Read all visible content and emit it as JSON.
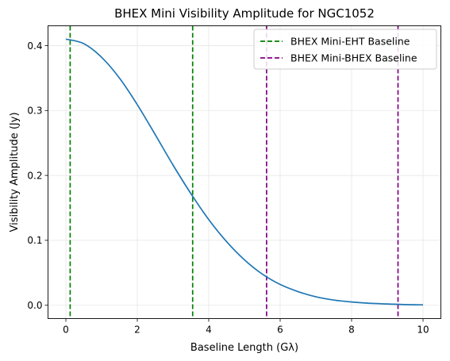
{
  "chart_data": {
    "type": "line",
    "title": "BHEX Mini Visibility Amplitude for NGC1052",
    "xlabel": "Baseline Length (Gλ)",
    "ylabel": "Visibility Amplitude (Jy)",
    "xlim": [
      -0.5,
      10.5
    ],
    "ylim": [
      -0.0205,
      0.4305
    ],
    "xticks": [
      0,
      2,
      4,
      6,
      8,
      10
    ],
    "yticks": [
      0.0,
      0.1,
      0.2,
      0.3,
      0.4
    ],
    "xtick_labels": [
      "0",
      "2",
      "4",
      "6",
      "8",
      "10"
    ],
    "ytick_labels": [
      "0.0",
      "0.1",
      "0.2",
      "0.3",
      "0.4"
    ],
    "grid": true,
    "legend_position": "top-right",
    "series": [
      {
        "color": "#1f77b4",
        "x": [
          0,
          0.5,
          1,
          1.5,
          2,
          2.5,
          3,
          3.5,
          4,
          4.5,
          5,
          5.5,
          6,
          6.5,
          7,
          7.5,
          8,
          8.5,
          9,
          9.5,
          10
        ],
        "y": [
          0.41,
          0.403,
          0.382,
          0.35,
          0.309,
          0.263,
          0.216,
          0.172,
          0.132,
          0.098,
          0.07,
          0.048,
          0.032,
          0.021,
          0.013,
          0.008,
          0.005,
          0.003,
          0.002,
          0.001,
          0.0006
        ]
      }
    ],
    "vlines": [
      {
        "x": 0.12,
        "color": "#008000",
        "legend_ref": 0
      },
      {
        "x": 3.55,
        "color": "#008000",
        "legend_ref": 0
      },
      {
        "x": 5.62,
        "color": "#800080",
        "legend_ref": 1
      },
      {
        "x": 9.3,
        "color": "#800080",
        "legend_ref": 1
      }
    ],
    "legend": [
      {
        "label": "BHEX Mini-EHT Baseline",
        "color": "#008000"
      },
      {
        "label": "BHEX Mini-BHEX Baseline",
        "color": "#800080"
      }
    ]
  }
}
